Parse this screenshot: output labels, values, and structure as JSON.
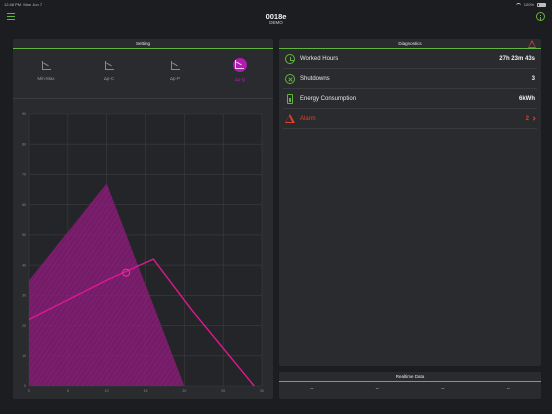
{
  "status_bar": {
    "time": "12:48 PM",
    "date": "Mon Jun 7",
    "battery": "100%"
  },
  "header": {
    "title": "0018e",
    "subtitle": "DEMO"
  },
  "setting": {
    "title": "Setting",
    "tabs": [
      {
        "label": "Min-Max",
        "active": false
      },
      {
        "label": "Δp-C",
        "active": false
      },
      {
        "label": "Δp-P",
        "active": false
      },
      {
        "label": "Δp-Q",
        "active": true
      }
    ]
  },
  "chart_data": {
    "type": "area",
    "xlim": [
      0,
      30
    ],
    "ylim": [
      0,
      90
    ],
    "x_ticks": [
      0,
      5,
      10,
      15,
      20,
      25,
      30
    ],
    "y_ticks": [
      0,
      10,
      20,
      30,
      40,
      50,
      60,
      70,
      80,
      90
    ],
    "series": [
      {
        "values": [
          [
            0,
            35
          ],
          [
            10,
            67
          ],
          [
            20,
            0
          ],
          [
            30,
            0
          ],
          [
            0,
            0
          ]
        ]
      },
      {
        "values": [
          [
            0,
            22
          ],
          [
            10,
            35
          ],
          [
            16,
            42
          ],
          [
            21,
            25
          ],
          [
            29,
            0
          ]
        ]
      }
    ],
    "operating_point": {
      "x": 12.5,
      "y": 37.5
    }
  },
  "diagnostics": {
    "title": "Diagnostics",
    "rows": [
      {
        "label": "Worked Hours",
        "value": "27h 23m 43s",
        "icon": "clock-icon",
        "alarm": false
      },
      {
        "label": "Shutdowns",
        "value": "3",
        "icon": "x-circle-icon",
        "alarm": false
      },
      {
        "label": "Energy Consumption",
        "value": "6kWh",
        "icon": "battery-icon",
        "alarm": false
      },
      {
        "label": "Alarm",
        "value": "2",
        "icon": "warning-icon",
        "alarm": true
      }
    ]
  },
  "realtime": {
    "title": "Realtime Data",
    "values": [
      "--",
      "--",
      "--",
      "--"
    ]
  },
  "colors": {
    "accent": "#63b43a",
    "magenta": "#b01bb0",
    "alarm": "#d9422b"
  }
}
